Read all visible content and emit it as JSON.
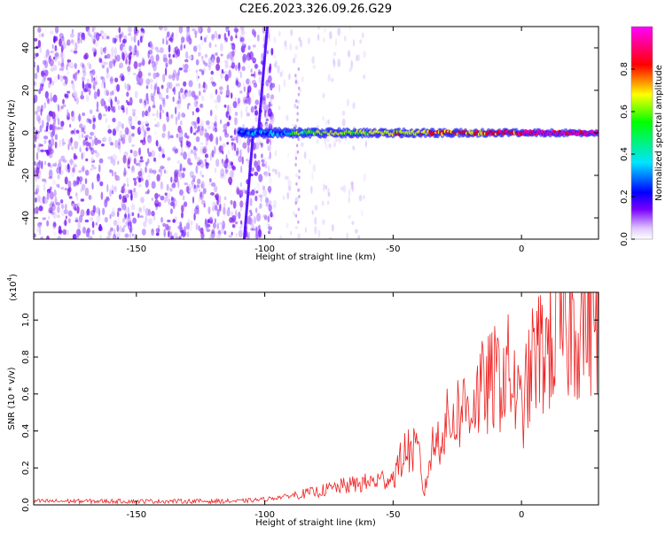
{
  "title": "C2E6.2023.326.09.26.G29",
  "chart_data": [
    {
      "type": "heatmap",
      "title": "C2E6.2023.326.09.26.G29",
      "xlabel": "Height of straight line (km)",
      "ylabel": "Frequency (Hz)",
      "xlim": [
        -190,
        30
      ],
      "ylim": [
        -50,
        50
      ],
      "xticks": [
        -150,
        -100,
        -50,
        0
      ],
      "yticks": [
        -40,
        -20,
        0,
        20,
        40
      ],
      "description": "Noise-dominated purple speckle below about -100 km; a bright spectral line near 0 Hz from about -110 km to 30 km, plus a steep diagonal streak near -105 km to -95 km.",
      "line_frequency_hz": 0,
      "line_start_km": -110,
      "line_end_km": 30,
      "colorbar": {
        "label": "Normalized spectral amplitude",
        "range": [
          0.0,
          1.0
        ],
        "ticks": [
          0.0,
          0.2,
          0.4,
          0.6,
          0.8
        ]
      }
    },
    {
      "type": "line",
      "xlabel": "Height of straight line (km)",
      "ylabel": "SNR (10 * v/v)",
      "scale_label": "(x10",
      "scale_exp": "4",
      "scale_close": ")",
      "xlim": [
        -190,
        30
      ],
      "ylim": [
        0,
        1.15
      ],
      "xticks": [
        -150,
        -100,
        -50,
        0
      ],
      "yticks": [
        0.0,
        0.2,
        0.4,
        0.6,
        0.8,
        1.0
      ],
      "color": "#ee2222",
      "series": [
        {
          "name": "SNR",
          "x": [
            -190,
            -150,
            -110,
            -100,
            -90,
            -80,
            -70,
            -60,
            -50,
            -45,
            -40,
            -38,
            -35,
            -30,
            -25,
            -20,
            -15,
            -10,
            -5,
            0,
            5,
            10,
            15,
            20,
            25,
            30
          ],
          "y": [
            0.02,
            0.02,
            0.02,
            0.03,
            0.05,
            0.07,
            0.1,
            0.12,
            0.15,
            0.3,
            0.28,
            0.05,
            0.3,
            0.42,
            0.5,
            0.55,
            0.62,
            0.68,
            0.72,
            0.5,
            0.8,
            0.85,
            0.92,
            0.98,
            1.02,
            1.05
          ]
        }
      ]
    }
  ]
}
